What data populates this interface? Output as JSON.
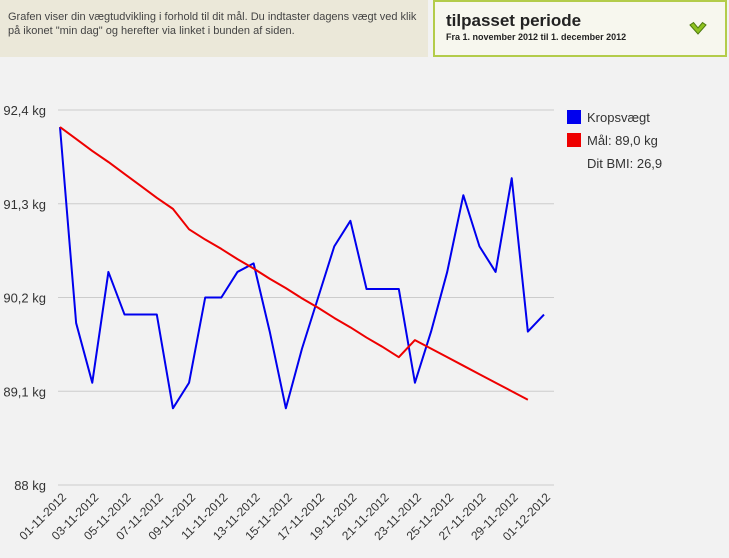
{
  "header": {
    "info_text": "Grafen viser din vægtudvikling i forhold til dit mål. Du indtaster dagens vægt ved klik på ikonet \"min dag\" og herefter via linket i bunden af siden.",
    "period_title": "tilpasset periode",
    "period_range": "Fra 1. november 2012 til 1. december 2012",
    "toggle_icon": "chevron-down-icon"
  },
  "colors": {
    "weight": "#0000ee",
    "goal": "#ee0000",
    "grid": "#cccccc"
  },
  "chart_data": {
    "type": "line",
    "title": "",
    "xlabel": "",
    "ylabel": "",
    "ylim": [
      88,
      92.4
    ],
    "y_ticks": [
      "92,4 kg",
      "91,3 kg",
      "90,2 kg",
      "89,1 kg",
      "88 kg"
    ],
    "y_tick_values": [
      92.4,
      91.3,
      90.2,
      89.1,
      88
    ],
    "x_tick_labels": [
      "01-11-2012",
      "03-11-2012",
      "05-11-2012",
      "07-11-2012",
      "09-11-2012",
      "11-11-2012",
      "13-11-2012",
      "15-11-2012",
      "17-11-2012",
      "19-11-2012",
      "21-11-2012",
      "23-11-2012",
      "25-11-2012",
      "27-11-2012",
      "29-11-2012",
      "01-12-2012"
    ],
    "x": [
      "01-11-2012",
      "02-11-2012",
      "03-11-2012",
      "04-11-2012",
      "05-11-2012",
      "06-11-2012",
      "07-11-2012",
      "08-11-2012",
      "09-11-2012",
      "10-11-2012",
      "11-11-2012",
      "12-11-2012",
      "13-11-2012",
      "14-11-2012",
      "15-11-2012",
      "16-11-2012",
      "17-11-2012",
      "18-11-2012",
      "19-11-2012",
      "20-11-2012",
      "21-11-2012",
      "22-11-2012",
      "23-11-2012",
      "24-11-2012",
      "25-11-2012",
      "26-11-2012",
      "27-11-2012",
      "28-11-2012",
      "29-11-2012",
      "30-11-2012",
      "01-12-2012"
    ],
    "series": [
      {
        "name": "Kropsvægt",
        "color": "#0000ee",
        "values": [
          92.2,
          89.9,
          89.2,
          90.5,
          90.0,
          90.0,
          90.0,
          88.9,
          89.2,
          90.2,
          90.2,
          90.5,
          90.6,
          89.8,
          88.9,
          89.6,
          90.2,
          90.8,
          91.1,
          90.3,
          90.3,
          90.3,
          89.2,
          89.8,
          90.5,
          91.4,
          90.8,
          90.5,
          91.6,
          89.8,
          90.0
        ]
      },
      {
        "name": "Mål: 89,0 kg",
        "color": "#ee0000",
        "values": [
          92.2,
          92.06,
          91.92,
          91.79,
          91.65,
          91.51,
          91.37,
          91.24,
          91.0,
          90.88,
          90.77,
          90.65,
          90.54,
          90.42,
          90.31,
          90.19,
          90.08,
          89.96,
          89.85,
          89.73,
          89.62,
          89.5,
          89.7,
          89.6,
          89.5,
          89.4,
          89.3,
          89.2,
          89.1,
          89.0,
          null
        ]
      }
    ],
    "legend": {
      "position": "top-right",
      "items": [
        "Kropsvægt",
        "Mål: 89,0 kg"
      ],
      "extra": "Dit BMI: 26,9"
    },
    "grid": true
  }
}
